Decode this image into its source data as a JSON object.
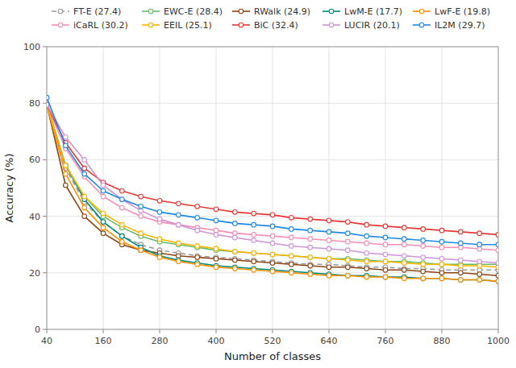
{
  "chart_data": {
    "type": "line",
    "xlabel": "Number of classes",
    "ylabel": "Accuracy (%)",
    "x": [
      40,
      80,
      120,
      160,
      200,
      240,
      280,
      320,
      360,
      400,
      440,
      480,
      520,
      560,
      600,
      640,
      680,
      720,
      760,
      800,
      840,
      880,
      920,
      960,
      1000
    ],
    "series": [
      {
        "name": "FT-E (27.4)",
        "color": "#999999",
        "marker": "circle",
        "line_style": "dashed",
        "values": [
          79.5,
          57,
          45,
          38,
          33,
          30,
          28,
          27,
          26,
          25.5,
          25,
          24.5,
          24,
          23.5,
          23,
          23,
          22.5,
          22,
          22,
          21.5,
          21.5,
          21,
          21,
          21,
          21
        ]
      },
      {
        "name": "EWC-E (28.4)",
        "color": "#66bb6a",
        "marker": "circle",
        "line_style": "solid",
        "values": [
          79.5,
          58,
          47,
          40,
          36,
          33,
          31,
          30,
          29,
          28,
          27.5,
          27,
          26.5,
          26,
          25.5,
          25,
          25,
          24.5,
          24,
          24,
          23.5,
          23,
          23,
          23,
          23
        ]
      },
      {
        "name": "RWalk (24.9)",
        "color": "#8B4513",
        "marker": "circle",
        "line_style": "solid",
        "values": [
          79.5,
          51,
          40,
          34,
          30,
          28,
          27,
          26,
          25.5,
          25,
          24.5,
          24,
          23.5,
          23,
          22.5,
          22,
          22,
          21.5,
          21,
          21,
          20.5,
          20,
          20,
          19.5,
          19
        ]
      },
      {
        "name": "LwM-E (17.7)",
        "color": "#00897b",
        "marker": "circle",
        "line_style": "solid",
        "values": [
          79.5,
          58,
          46,
          38,
          33,
          29,
          26,
          24.5,
          23.5,
          22.5,
          22,
          21.5,
          21,
          20.5,
          20,
          19.5,
          19,
          19,
          18.5,
          18.5,
          18,
          18,
          17.5,
          17.5,
          17
        ]
      },
      {
        "name": "LwF-E (19.8)",
        "color": "#ff8f00",
        "marker": "circle",
        "line_style": "solid",
        "values": [
          79.5,
          55,
          43,
          36,
          31,
          28,
          25.5,
          24,
          23,
          22,
          21.5,
          21,
          20.5,
          20,
          19.5,
          19,
          19,
          18.5,
          18.5,
          18,
          18,
          18,
          17.5,
          17.5,
          17
        ]
      },
      {
        "name": "iCaRL (30.2)",
        "color": "#f48fb1",
        "marker": "circle",
        "line_style": "solid",
        "values": [
          79.5,
          64,
          54,
          47,
          43,
          40,
          38,
          37,
          36,
          35,
          34,
          33.5,
          33,
          32.5,
          32,
          31.5,
          31,
          30.5,
          30,
          30,
          29.5,
          29,
          29,
          28.5,
          28
        ]
      },
      {
        "name": "EEIL (25.1)",
        "color": "#ffb300",
        "marker": "circle",
        "line_style": "solid",
        "values": [
          79.5,
          58,
          47,
          41,
          37,
          34,
          32,
          30.5,
          29.5,
          28.5,
          27.5,
          27,
          26.5,
          26,
          25.5,
          25,
          24.5,
          24,
          24,
          23.5,
          23,
          23,
          22.5,
          22.5,
          22
        ]
      },
      {
        "name": "BiC (32.4)",
        "color": "#e53935",
        "marker": "circle",
        "line_style": "solid",
        "values": [
          79.5,
          66,
          57,
          52,
          49,
          47,
          45.5,
          44.5,
          43.5,
          42.5,
          41.5,
          41,
          40.5,
          39.5,
          39,
          38.5,
          38,
          37,
          36.5,
          36,
          35.5,
          35,
          34.5,
          34,
          33.5
        ]
      },
      {
        "name": "LUCIR (20.1)",
        "color": "#ce93d8",
        "marker": "circle",
        "line_style": "solid",
        "values": [
          79.5,
          68,
          60,
          51,
          46,
          42,
          39,
          37,
          35,
          33.5,
          32.5,
          31.5,
          30.5,
          29.5,
          29,
          28.5,
          28,
          27,
          26.5,
          26,
          25.5,
          25,
          24.5,
          24,
          23.5
        ]
      },
      {
        "name": "IL2M (29.7)",
        "color": "#1e88e5",
        "marker": "circle",
        "line_style": "solid",
        "values": [
          82,
          65,
          55,
          49,
          46,
          43.5,
          41.5,
          40.5,
          39.5,
          38.5,
          37.5,
          37,
          36.5,
          35.5,
          35,
          34.5,
          34,
          33,
          32.5,
          32,
          31.5,
          31,
          30.5,
          30,
          30
        ]
      }
    ],
    "xlim": [
      40,
      1000
    ],
    "ylim": [
      0,
      100
    ],
    "xticks": [
      40,
      160,
      280,
      400,
      520,
      640,
      760,
      880,
      1000
    ],
    "yticks": [
      0,
      20,
      40,
      60,
      80,
      100
    ],
    "grid": true,
    "legend": "top"
  }
}
